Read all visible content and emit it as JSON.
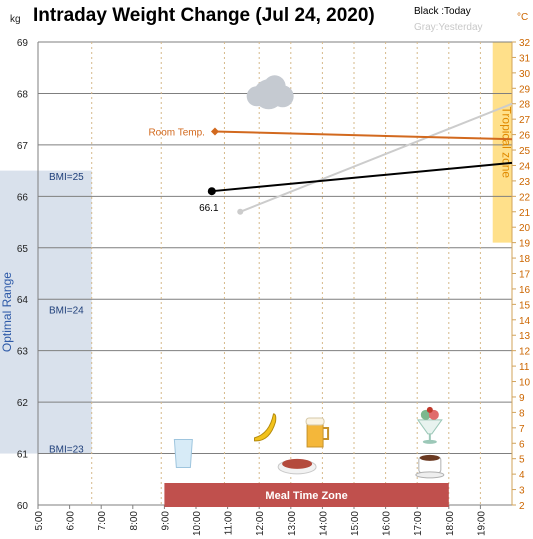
{
  "chart_data": {
    "type": "line",
    "title": "Intraday Weight Change (Jul 24, 2020)",
    "legend": {
      "today": "Black :Today",
      "yesterday": "Gray:Yesterday"
    },
    "y_left": {
      "unit": "kg",
      "min": 60,
      "max": 69,
      "ticks": [
        60,
        61,
        62,
        63,
        64,
        65,
        66,
        67,
        68,
        69
      ]
    },
    "y_right": {
      "unit": "°C",
      "min": 2,
      "max": 32,
      "ticks": [
        2,
        3,
        4,
        5,
        6,
        7,
        8,
        9,
        10,
        11,
        12,
        13,
        14,
        15,
        16,
        17,
        18,
        19,
        20,
        21,
        22,
        23,
        24,
        25,
        26,
        27,
        28,
        29,
        30,
        31,
        32
      ]
    },
    "x_axis": {
      "min": 5,
      "max": 20,
      "tick_labels": [
        "5:00",
        "6:00",
        "7:00",
        "8:00",
        "9:00",
        "10:00",
        "11:00",
        "12:00",
        "13:00",
        "14:00",
        "15:00",
        "16:00",
        "17:00",
        "18:00",
        "19:00"
      ]
    },
    "series": [
      {
        "name": "Today",
        "color": "#000000",
        "points": [
          {
            "x": 10.5,
            "y": 66.1
          },
          {
            "x": 20.0,
            "y": 66.65
          }
        ],
        "label": "66.1"
      },
      {
        "name": "Yesterday",
        "color": "#cccccc",
        "points": [
          {
            "x": 11.4,
            "y": 65.7
          },
          {
            "x": 20.0,
            "y": 67.8
          }
        ]
      },
      {
        "name": "Room Temp.",
        "color": "#d2691e",
        "axis": "right",
        "points": [
          {
            "x": 10.6,
            "y": 26.2
          },
          {
            "x": 20.0,
            "y": 25.7
          }
        ],
        "label": "Room Temp."
      }
    ],
    "bands": [
      {
        "label": "Optimal Range",
        "axis": "left",
        "from": 61,
        "to": 66.5,
        "x_from": 5,
        "x_to": 6.7,
        "color": "#d9e1ec",
        "text_color": "#2e5aa8"
      },
      {
        "label": "Tropical zone",
        "axis": "right",
        "from": 19,
        "to": 32,
        "x_from": 19.2,
        "x_to": 20,
        "color": "#ffe08a",
        "text_color": "#e08a00"
      },
      {
        "label": "Meal Time Zone",
        "x_from": 9,
        "x_to": 18,
        "color": "#c0504d",
        "text_color": "#ffffff"
      }
    ],
    "bmi_labels": [
      {
        "text": "BMI=25",
        "y": 66.4
      },
      {
        "text": "BMI=24",
        "y": 63.8
      },
      {
        "text": "BMI=23",
        "y": 61.1
      }
    ],
    "meal_icons": [
      {
        "icon": "water-glass-icon",
        "x": 9.6,
        "y": 61.0
      },
      {
        "icon": "banana-icon",
        "x": 12.2,
        "y": 61.5
      },
      {
        "icon": "beer-icon",
        "x": 13.8,
        "y": 61.4
      },
      {
        "icon": "steak-icon",
        "x": 13.2,
        "y": 60.8
      },
      {
        "icon": "parfait-icon",
        "x": 17.4,
        "y": 61.5
      },
      {
        "icon": "coffee-icon",
        "x": 17.4,
        "y": 60.8
      }
    ],
    "weather": {
      "icon": "cloud-icon",
      "x": 12.3,
      "y": 68.1
    },
    "grid": true
  }
}
